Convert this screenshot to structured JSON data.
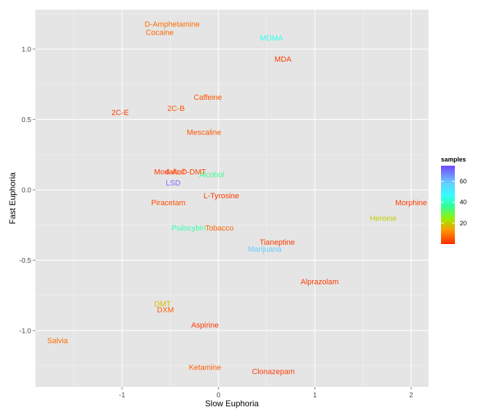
{
  "chart_data": {
    "type": "scatter",
    "title": "",
    "xlabel": "Slow Euphoria",
    "ylabel": "Fast Euphoria",
    "xlim": [
      -1.9,
      2.18
    ],
    "ylim": [
      -1.4,
      1.28
    ],
    "x_ticks": [
      {
        "v": -1,
        "label": "-1"
      },
      {
        "v": 0,
        "label": "0"
      },
      {
        "v": 1,
        "label": "1"
      },
      {
        "v": 2,
        "label": "2"
      }
    ],
    "y_ticks": [
      {
        "v": 1.0,
        "label": "1.0"
      },
      {
        "v": 0.5,
        "label": "0.5"
      },
      {
        "v": 0.0,
        "label": "0.0"
      },
      {
        "v": -0.5,
        "label": "-0.5"
      },
      {
        "v": -1.0,
        "label": "-1.0"
      }
    ],
    "grid": true,
    "legend": {
      "title": "samples",
      "placement": "right",
      "range": [
        0,
        75
      ],
      "ticks": [
        {
          "v": 20,
          "label": "20"
        },
        {
          "v": 40,
          "label": "40"
        },
        {
          "v": 60,
          "label": "60"
        }
      ]
    },
    "points": [
      {
        "label": "D-Amphetamine",
        "x": -0.48,
        "y": 1.18,
        "samples": 8
      },
      {
        "label": "Cocaine",
        "x": -0.61,
        "y": 1.12,
        "samples": 7
      },
      {
        "label": "MDMA",
        "x": 0.55,
        "y": 1.08,
        "samples": 45
      },
      {
        "label": "MDA",
        "x": 0.67,
        "y": 0.93,
        "samples": 2
      },
      {
        "label": "Caffeine",
        "x": -0.11,
        "y": 0.66,
        "samples": 5
      },
      {
        "label": "2C-B",
        "x": -0.44,
        "y": 0.58,
        "samples": 5
      },
      {
        "label": "2C-E",
        "x": -1.02,
        "y": 0.55,
        "samples": 2
      },
      {
        "label": "Mescaline",
        "x": -0.15,
        "y": 0.41,
        "samples": 5
      },
      {
        "label": "Modafinil",
        "x": -0.51,
        "y": 0.13,
        "samples": 2
      },
      {
        "label": "4-AcO-DMT",
        "x": -0.34,
        "y": 0.13,
        "samples": 3
      },
      {
        "label": "Alcohol",
        "x": -0.07,
        "y": 0.11,
        "samples": 35
      },
      {
        "label": "LSD",
        "x": -0.47,
        "y": 0.05,
        "samples": 70
      },
      {
        "label": "L-Tyrosine",
        "x": 0.03,
        "y": -0.04,
        "samples": 2
      },
      {
        "label": "Piracetam",
        "x": -0.52,
        "y": -0.09,
        "samples": 4
      },
      {
        "label": "Morphine",
        "x": 2.0,
        "y": -0.09,
        "samples": 2
      },
      {
        "label": "Heroine",
        "x": 1.71,
        "y": -0.2,
        "samples": 20
      },
      {
        "label": "Psilocybin",
        "x": -0.31,
        "y": -0.27,
        "samples": 38
      },
      {
        "label": "Tobacco",
        "x": 0.01,
        "y": -0.27,
        "samples": 7
      },
      {
        "label": "Tianeptine",
        "x": 0.61,
        "y": -0.37,
        "samples": 2
      },
      {
        "label": "Marijuana",
        "x": 0.48,
        "y": -0.42,
        "samples": 58
      },
      {
        "label": "Alprazolam",
        "x": 1.05,
        "y": -0.65,
        "samples": 2
      },
      {
        "label": "DMT",
        "x": -0.58,
        "y": -0.81,
        "samples": 18
      },
      {
        "label": "DXM",
        "x": -0.55,
        "y": -0.85,
        "samples": 6
      },
      {
        "label": "Aspirine",
        "x": -0.14,
        "y": -0.96,
        "samples": 2
      },
      {
        "label": "Salvia",
        "x": -1.67,
        "y": -1.07,
        "samples": 8
      },
      {
        "label": "Ketamine",
        "x": -0.14,
        "y": -1.26,
        "samples": 6
      },
      {
        "label": "Clonazepam",
        "x": 0.57,
        "y": -1.29,
        "samples": 2
      }
    ]
  }
}
